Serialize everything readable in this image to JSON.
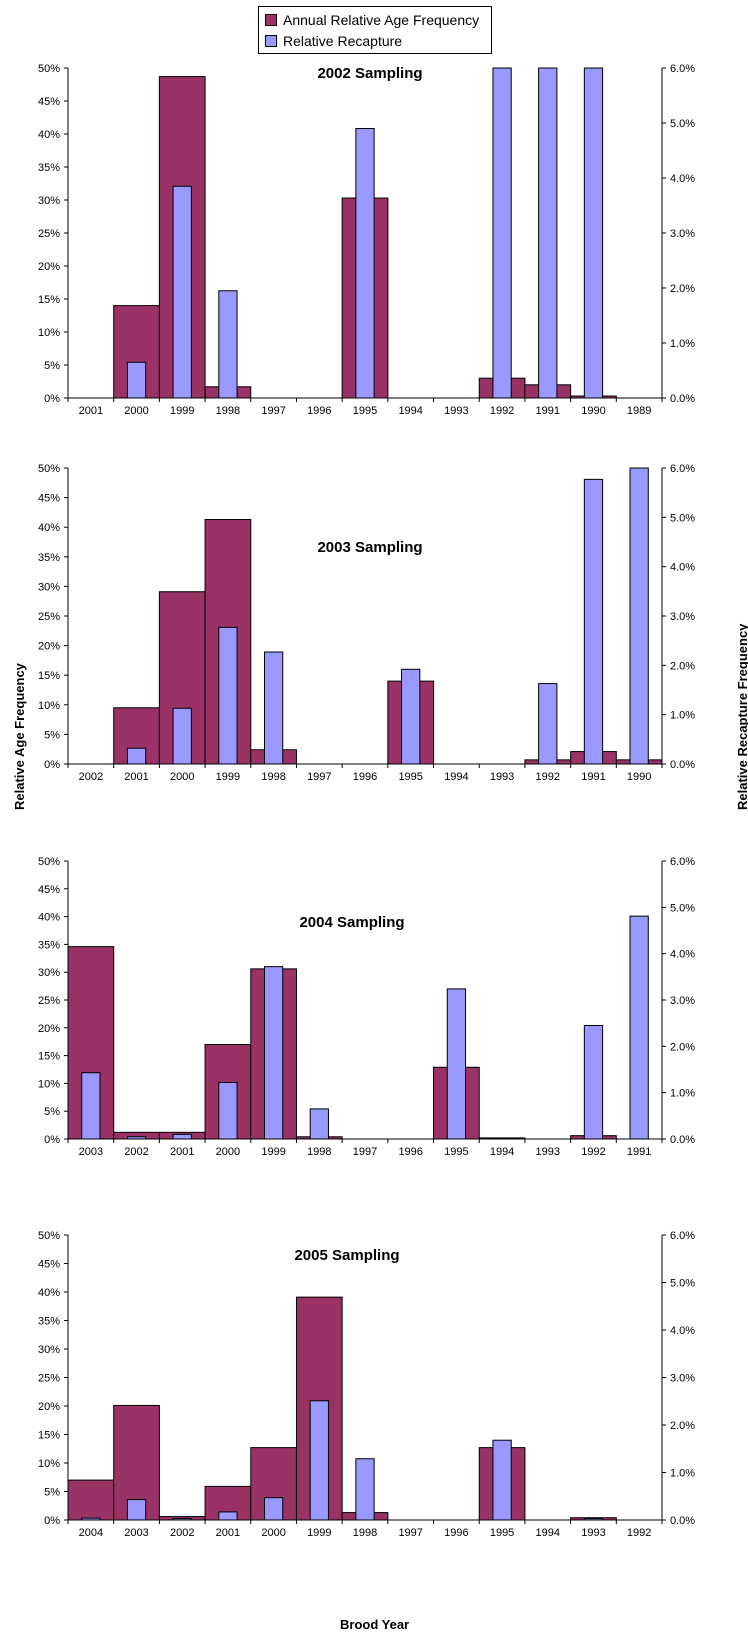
{
  "legend": {
    "age_label": "Annual Relative Age Frequency",
    "recap_label": "Relative Recapture"
  },
  "colors": {
    "age_fill": "#993366",
    "recap_fill": "#9999FF",
    "outline": "#000000"
  },
  "axis_labels": {
    "left": "Relative Age Frequency",
    "right": "Relative Recapture Frequency",
    "bottom": "Brood Year"
  },
  "chart_data": [
    {
      "type": "bar",
      "title": "2002 Sampling",
      "categories": [
        "2001",
        "2000",
        "1999",
        "1998",
        "1997",
        "1996",
        "1995",
        "1994",
        "1993",
        "1992",
        "1991",
        "1990",
        "1989"
      ],
      "y_left_ticks": [
        "0%",
        "5%",
        "10%",
        "15%",
        "20%",
        "25%",
        "30%",
        "35%",
        "40%",
        "45%",
        "50%"
      ],
      "y_right_ticks": [
        "0.0%",
        "1.0%",
        "2.0%",
        "3.0%",
        "4.0%",
        "5.0%",
        "6.0%"
      ],
      "ylim_left": [
        0,
        50
      ],
      "ylim_right": [
        0,
        6
      ],
      "series": [
        {
          "name": "Annual Relative Age Frequency",
          "axis": "left",
          "values": [
            0,
            14,
            48.7,
            1.7,
            0,
            0,
            30.3,
            0,
            0,
            3.0,
            2.0,
            0.3,
            0
          ]
        },
        {
          "name": "Relative Recapture",
          "axis": "right",
          "values": [
            0,
            0.65,
            3.85,
            1.95,
            0,
            0,
            4.9,
            0,
            0,
            6.0,
            6.0,
            6.0,
            0
          ]
        }
      ]
    },
    {
      "type": "bar",
      "title": "2003 Sampling",
      "categories": [
        "2002",
        "2001",
        "2000",
        "1999",
        "1998",
        "1997",
        "1996",
        "1995",
        "1994",
        "1993",
        "1992",
        "1991",
        "1990"
      ],
      "y_left_ticks": [
        "0%",
        "5%",
        "10%",
        "15%",
        "20%",
        "25%",
        "30%",
        "35%",
        "40%",
        "45%",
        "50%"
      ],
      "y_right_ticks": [
        "0.0%",
        "1.0%",
        "2.0%",
        "3.0%",
        "4.0%",
        "5.0%",
        "6.0%"
      ],
      "ylim_left": [
        0,
        50
      ],
      "ylim_right": [
        0,
        6
      ],
      "series": [
        {
          "name": "Annual Relative Age Frequency",
          "axis": "left",
          "values": [
            0,
            9.5,
            29.1,
            41.3,
            2.4,
            0,
            0,
            14.0,
            0,
            0,
            0.7,
            2.1,
            0.7
          ]
        },
        {
          "name": "Relative Recapture",
          "axis": "right",
          "values": [
            0,
            0.32,
            1.13,
            2.77,
            2.27,
            0,
            0,
            1.92,
            0,
            0,
            1.63,
            5.77,
            6.0
          ]
        }
      ]
    },
    {
      "type": "bar",
      "title": "2004 Sampling",
      "categories": [
        "2003",
        "2002",
        "2001",
        "2000",
        "1999",
        "1998",
        "1997",
        "1996",
        "1995",
        "1994",
        "1993",
        "1992",
        "1991"
      ],
      "y_left_ticks": [
        "0%",
        "5%",
        "10%",
        "15%",
        "20%",
        "25%",
        "30%",
        "35%",
        "40%",
        "45%",
        "50%"
      ],
      "y_right_ticks": [
        "0.0%",
        "1.0%",
        "2.0%",
        "3.0%",
        "4.0%",
        "5.0%",
        "6.0%"
      ],
      "ylim_left": [
        0,
        50
      ],
      "ylim_right": [
        0,
        6
      ],
      "series": [
        {
          "name": "Annual Relative Age Frequency",
          "axis": "left",
          "values": [
            34.6,
            1.2,
            1.2,
            17.0,
            30.6,
            0.4,
            0,
            0,
            12.9,
            0.2,
            0,
            0.6,
            0
          ]
        },
        {
          "name": "Relative Recapture",
          "axis": "right",
          "values": [
            1.43,
            0.05,
            0.1,
            1.22,
            3.72,
            0.65,
            0,
            0,
            3.24,
            0,
            0,
            2.45,
            4.81
          ]
        }
      ]
    },
    {
      "type": "bar",
      "title": "2005 Sampling",
      "categories": [
        "2004",
        "2003",
        "2002",
        "2001",
        "2000",
        "1999",
        "1998",
        "1997",
        "1996",
        "1995",
        "1994",
        "1993",
        "1992"
      ],
      "y_left_ticks": [
        "0%",
        "5%",
        "10%",
        "15%",
        "20%",
        "25%",
        "30%",
        "35%",
        "40%",
        "45%",
        "50%"
      ],
      "y_right_ticks": [
        "0.0%",
        "1.0%",
        "2.0%",
        "3.0%",
        "4.0%",
        "5.0%",
        "6.0%"
      ],
      "ylim_left": [
        0,
        50
      ],
      "ylim_right": [
        0,
        6
      ],
      "series": [
        {
          "name": "Annual Relative Age Frequency",
          "axis": "left",
          "values": [
            7.0,
            20.1,
            0.6,
            5.9,
            12.7,
            39.1,
            1.3,
            0,
            0,
            12.7,
            0,
            0.4,
            0
          ]
        },
        {
          "name": "Relative Recapture",
          "axis": "right",
          "values": [
            0.04,
            0.43,
            0.03,
            0.17,
            0.47,
            2.51,
            1.29,
            0,
            0,
            1.68,
            0,
            0.03,
            0
          ]
        }
      ]
    }
  ]
}
